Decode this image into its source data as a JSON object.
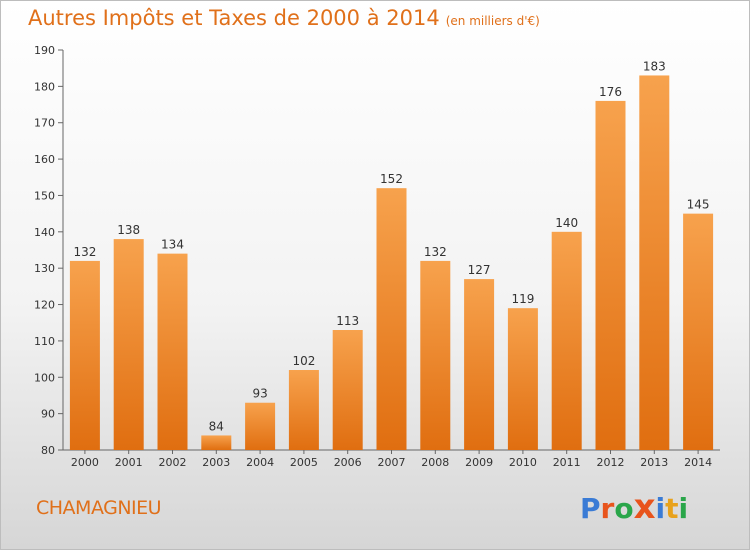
{
  "title": "Autres Impôts et Taxes de 2000 à 2014",
  "unit": "(en milliers d'€)",
  "place": "CHAMAGNIEU",
  "logo": {
    "text": "Proxiti",
    "colors": [
      "#3a7bd5",
      "#e8541c",
      "#2aa64a",
      "#e8541c",
      "#3a7bd5",
      "#e8a21c",
      "#2aa64a"
    ]
  },
  "colors": {
    "bar_light": "#f7a24d",
    "bar_dark": "#e06e10",
    "title": "#e0701a"
  },
  "chart_data": {
    "type": "bar",
    "categories": [
      "2000",
      "2001",
      "2002",
      "2003",
      "2004",
      "2005",
      "2006",
      "2007",
      "2008",
      "2009",
      "2010",
      "2011",
      "2012",
      "2013",
      "2014"
    ],
    "values": [
      132,
      138,
      134,
      84,
      93,
      102,
      113,
      152,
      132,
      127,
      119,
      140,
      176,
      183,
      145
    ],
    "title": "Autres Impôts et Taxes de 2000 à 2014",
    "ylim": [
      80,
      190
    ],
    "yticks": [
      80,
      90,
      100,
      110,
      120,
      130,
      140,
      150,
      160,
      170,
      180,
      190
    ],
    "grid": false,
    "data_labels": true
  }
}
